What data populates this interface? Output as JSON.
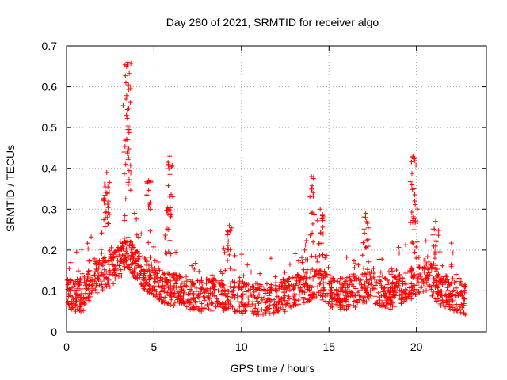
{
  "chart_data": {
    "type": "scatter",
    "title": "Day 280 of 2021, SRMTID for receiver algo",
    "xlabel": "GPS time / hours",
    "ylabel": "SRMTID / TECUs",
    "xlim": [
      0,
      24
    ],
    "ylim": [
      0,
      0.7
    ],
    "xticks": [
      0,
      5,
      10,
      15,
      20
    ],
    "yticks": [
      0,
      0.1,
      0.2,
      0.3,
      0.4,
      0.5,
      0.6,
      0.7
    ],
    "xtick_labels": [
      "0",
      "5",
      "10",
      "15",
      "20"
    ],
    "ytick_labels": [
      "0",
      "0.1",
      "0.2",
      "0.3",
      "0.4",
      "0.5",
      "0.6",
      "0.7"
    ],
    "grid": true,
    "marker": "+",
    "series_color": "#ff0000",
    "x_range_of_data": [
      0.0,
      22.8
    ],
    "baseline": [
      [
        0.0,
        0.09
      ],
      [
        1.0,
        0.09
      ],
      [
        1.5,
        0.13
      ],
      [
        2.5,
        0.15
      ],
      [
        3.5,
        0.19
      ],
      [
        4.5,
        0.14
      ],
      [
        5.5,
        0.11
      ],
      [
        6.5,
        0.1
      ],
      [
        7.5,
        0.09
      ],
      [
        8.5,
        0.09
      ],
      [
        9.5,
        0.09
      ],
      [
        10.5,
        0.08
      ],
      [
        11.5,
        0.08
      ],
      [
        12.5,
        0.09
      ],
      [
        13.5,
        0.11
      ],
      [
        14.5,
        0.12
      ],
      [
        15.5,
        0.09
      ],
      [
        16.5,
        0.1
      ],
      [
        17.5,
        0.11
      ],
      [
        18.5,
        0.09
      ],
      [
        19.5,
        0.11
      ],
      [
        20.5,
        0.14
      ],
      [
        21.5,
        0.1
      ],
      [
        22.8,
        0.08
      ]
    ],
    "peaks": [
      {
        "x": 3.5,
        "y": 0.66
      },
      {
        "x": 3.4,
        "y": 0.57
      },
      {
        "x": 3.5,
        "y": 0.47
      },
      {
        "x": 2.3,
        "y": 0.39
      },
      {
        "x": 2.3,
        "y": 0.34
      },
      {
        "x": 4.7,
        "y": 0.37
      },
      {
        "x": 5.9,
        "y": 0.43
      },
      {
        "x": 5.8,
        "y": 0.3
      },
      {
        "x": 9.3,
        "y": 0.26
      },
      {
        "x": 14.0,
        "y": 0.38
      },
      {
        "x": 14.5,
        "y": 0.3
      },
      {
        "x": 17.1,
        "y": 0.29
      },
      {
        "x": 19.8,
        "y": 0.43
      },
      {
        "x": 19.9,
        "y": 0.32
      },
      {
        "x": 21.1,
        "y": 0.27
      }
    ]
  }
}
